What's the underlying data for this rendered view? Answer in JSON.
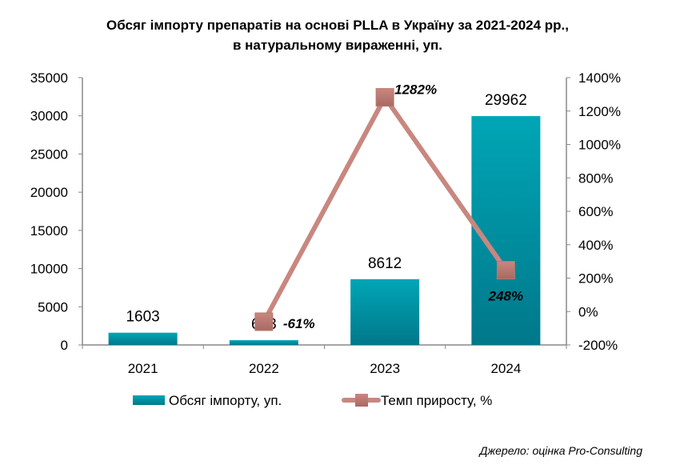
{
  "chart_data": {
    "type": "bar+line",
    "title": "Обсяг імпорту препаратів на основі PLLA в Україну за 2021-2024 рр.,",
    "subtitle": "в натуральному вираженні, уп.",
    "categories": [
      "2021",
      "2022",
      "2023",
      "2024"
    ],
    "series": [
      {
        "name": "Обсяг імпорту, уп.",
        "type": "bar",
        "axis": "left",
        "values": [
          1603,
          623,
          8612,
          29962
        ],
        "labels": [
          "1603",
          "623",
          "8612",
          "29962"
        ],
        "color": "#0097A7"
      },
      {
        "name": "Темп приросту, %",
        "type": "line",
        "axis": "right",
        "values": [
          null,
          -61,
          1282,
          248
        ],
        "labels": [
          "",
          "-61%",
          "1282%",
          "248%"
        ],
        "color": "#C8877F"
      }
    ],
    "left_axis": {
      "range": [
        0,
        35000
      ],
      "ticks": [
        "0",
        "5000",
        "10000",
        "15000",
        "20000",
        "25000",
        "30000",
        "35000"
      ]
    },
    "right_axis": {
      "range": [
        -200,
        1400
      ],
      "ticks": [
        "-200%",
        "0%",
        "200%",
        "400%",
        "600%",
        "800%",
        "1000%",
        "1200%",
        "1400%"
      ]
    },
    "legend": "bottom",
    "grid": false,
    "source": "Джерело: оцінка Pro-Consulting"
  }
}
